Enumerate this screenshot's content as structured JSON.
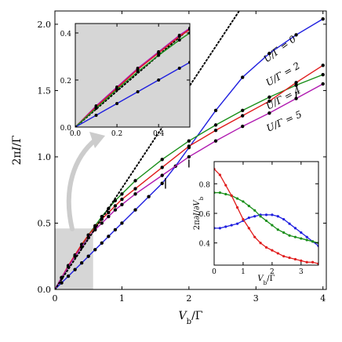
{
  "chart_data": [
    {
      "id": "main",
      "type": "line",
      "xlabel": "V_b/Γ",
      "ylabel": "2πI/Γ",
      "xlim": [
        0,
        4.05
      ],
      "ylim": [
        0,
        2.1
      ],
      "xticks": [
        0,
        1,
        2,
        3,
        4
      ],
      "yticks": [
        0.0,
        0.5,
        1.0,
        1.5,
        2.0
      ],
      "xtick_labels": [
        "0",
        "1",
        "2",
        "3",
        "4"
      ],
      "ytick_labels": [
        "0.0",
        "0.5",
        "1.0",
        "1.5",
        "2.0"
      ],
      "grid": false,
      "series": [
        {
          "name": "U/Γ = 0",
          "color": "#1f1fdf",
          "x": [
            0,
            0.1,
            0.2,
            0.3,
            0.4,
            0.5,
            0.6,
            0.7,
            0.8,
            0.9,
            1.0,
            1.2,
            1.4,
            1.6,
            1.8,
            2.0,
            2.4,
            2.8,
            3.2,
            3.6,
            4.0
          ],
          "y": [
            0,
            0.05,
            0.1,
            0.15,
            0.2,
            0.25,
            0.3,
            0.35,
            0.4,
            0.45,
            0.5,
            0.6,
            0.7,
            0.8,
            0.93,
            1.07,
            1.35,
            1.6,
            1.78,
            1.92,
            2.04
          ]
        },
        {
          "name": "U/Γ = 2",
          "color": "#1a8f1a",
          "x": [
            0,
            0.1,
            0.2,
            0.3,
            0.4,
            0.5,
            0.6,
            0.7,
            0.8,
            0.9,
            1.0,
            1.2,
            1.6,
            2.0,
            2.4,
            2.8,
            3.2,
            3.6,
            4.0
          ],
          "y": [
            0,
            0.085,
            0.17,
            0.25,
            0.33,
            0.41,
            0.48,
            0.55,
            0.61,
            0.67,
            0.72,
            0.82,
            0.98,
            1.12,
            1.24,
            1.35,
            1.45,
            1.54,
            1.62
          ]
        },
        {
          "name": "U/Γ = 4",
          "color": "#e01b1b",
          "x": [
            0,
            0.1,
            0.2,
            0.3,
            0.4,
            0.5,
            0.6,
            0.7,
            0.8,
            0.9,
            1.0,
            1.2,
            1.6,
            2.0,
            2.4,
            2.8,
            3.2,
            3.6,
            4.0
          ],
          "y": [
            0,
            0.09,
            0.18,
            0.26,
            0.34,
            0.41,
            0.47,
            0.53,
            0.58,
            0.63,
            0.68,
            0.76,
            0.92,
            1.08,
            1.2,
            1.31,
            1.42,
            1.56,
            1.69
          ]
        },
        {
          "name": "U/Γ = 5",
          "color": "#b01ab0",
          "x": [
            0,
            0.1,
            0.2,
            0.3,
            0.4,
            0.5,
            0.6,
            0.7,
            0.8,
            0.9,
            1.0,
            1.2,
            1.6,
            2.0,
            2.4,
            2.8,
            3.2,
            3.6,
            4.0
          ],
          "y": [
            0,
            0.09,
            0.17,
            0.25,
            0.32,
            0.39,
            0.45,
            0.5,
            0.55,
            0.6,
            0.64,
            0.72,
            0.86,
            1.0,
            1.12,
            1.23,
            1.33,
            1.44,
            1.55
          ]
        },
        {
          "name": "",
          "color": "#000000",
          "style": "dotted",
          "x": [
            0,
            2.75
          ],
          "y": [
            0,
            2.1
          ]
        }
      ],
      "annotations": [
        "U/Γ = 0",
        "U/Γ = 2",
        "U/Γ = 4",
        "U/Γ = 5"
      ]
    },
    {
      "id": "inset_zoom",
      "type": "line",
      "xlim": [
        0,
        0.55
      ],
      "ylim": [
        0,
        0.44
      ],
      "xticks": [
        0.0,
        0.2,
        0.4
      ],
      "yticks": [
        0.0,
        0.2,
        0.4
      ],
      "xtick_labels": [
        "0.0",
        "0.2",
        "0.4"
      ],
      "ytick_labels": [
        "0.0",
        "0.2",
        "0.4"
      ],
      "series": [
        {
          "color": "#000000",
          "style": "dotted",
          "x": [
            0,
            0.55
          ],
          "y": [
            0,
            0.42
          ]
        },
        {
          "color": "#b01ab0",
          "x": [
            0,
            0.1,
            0.2,
            0.3,
            0.4,
            0.5,
            0.55
          ],
          "y": [
            0,
            0.09,
            0.17,
            0.25,
            0.32,
            0.39,
            0.42
          ]
        },
        {
          "color": "#e01b1b",
          "x": [
            0,
            0.1,
            0.2,
            0.3,
            0.4,
            0.5,
            0.55
          ],
          "y": [
            0,
            0.085,
            0.165,
            0.245,
            0.315,
            0.385,
            0.415
          ]
        },
        {
          "color": "#1a8f1a",
          "x": [
            0,
            0.1,
            0.2,
            0.3,
            0.4,
            0.5,
            0.55
          ],
          "y": [
            0,
            0.08,
            0.16,
            0.235,
            0.305,
            0.37,
            0.4
          ]
        },
        {
          "color": "#1f1fdf",
          "x": [
            0,
            0.1,
            0.2,
            0.3,
            0.4,
            0.5,
            0.55
          ],
          "y": [
            0,
            0.05,
            0.1,
            0.15,
            0.2,
            0.25,
            0.275
          ]
        }
      ]
    },
    {
      "id": "inset_conductance",
      "type": "line",
      "xlabel": "V_b/Γ",
      "ylabel": "2π∂I/∂V_b",
      "xlim": [
        0,
        3.6
      ],
      "ylim": [
        0.25,
        0.95
      ],
      "xticks": [
        0,
        1,
        2,
        3
      ],
      "yticks": [
        0.4,
        0.6,
        0.8
      ],
      "xtick_labels": [
        "0",
        "1",
        "2",
        "3"
      ],
      "ytick_labels": [
        "0.4",
        "0.6",
        "0.8"
      ],
      "series": [
        {
          "color": "#1f1fdf",
          "x": [
            0,
            0.2,
            0.4,
            0.6,
            0.8,
            1.0,
            1.2,
            1.4,
            1.6,
            1.8,
            2.0,
            2.2,
            2.4,
            2.6,
            2.8,
            3.0,
            3.2,
            3.4,
            3.6
          ],
          "y": [
            0.5,
            0.5,
            0.51,
            0.52,
            0.53,
            0.55,
            0.57,
            0.58,
            0.59,
            0.59,
            0.59,
            0.58,
            0.56,
            0.53,
            0.5,
            0.47,
            0.44,
            0.41,
            0.38
          ]
        },
        {
          "color": "#1a8f1a",
          "x": [
            0,
            0.2,
            0.4,
            0.6,
            0.8,
            1.0,
            1.2,
            1.4,
            1.6,
            1.8,
            2.0,
            2.2,
            2.4,
            2.6,
            2.8,
            3.0,
            3.2,
            3.4,
            3.6
          ],
          "y": [
            0.74,
            0.74,
            0.73,
            0.72,
            0.7,
            0.68,
            0.65,
            0.62,
            0.58,
            0.55,
            0.52,
            0.49,
            0.47,
            0.45,
            0.44,
            0.43,
            0.42,
            0.41,
            0.4
          ]
        },
        {
          "color": "#e01b1b",
          "x": [
            0,
            0.2,
            0.4,
            0.6,
            0.8,
            1.0,
            1.2,
            1.4,
            1.6,
            1.8,
            2.0,
            2.2,
            2.4,
            2.6,
            2.8,
            3.0,
            3.2,
            3.4,
            3.6
          ],
          "y": [
            0.9,
            0.86,
            0.79,
            0.72,
            0.64,
            0.56,
            0.5,
            0.44,
            0.4,
            0.37,
            0.35,
            0.33,
            0.31,
            0.3,
            0.29,
            0.28,
            0.27,
            0.27,
            0.26
          ]
        }
      ]
    }
  ]
}
